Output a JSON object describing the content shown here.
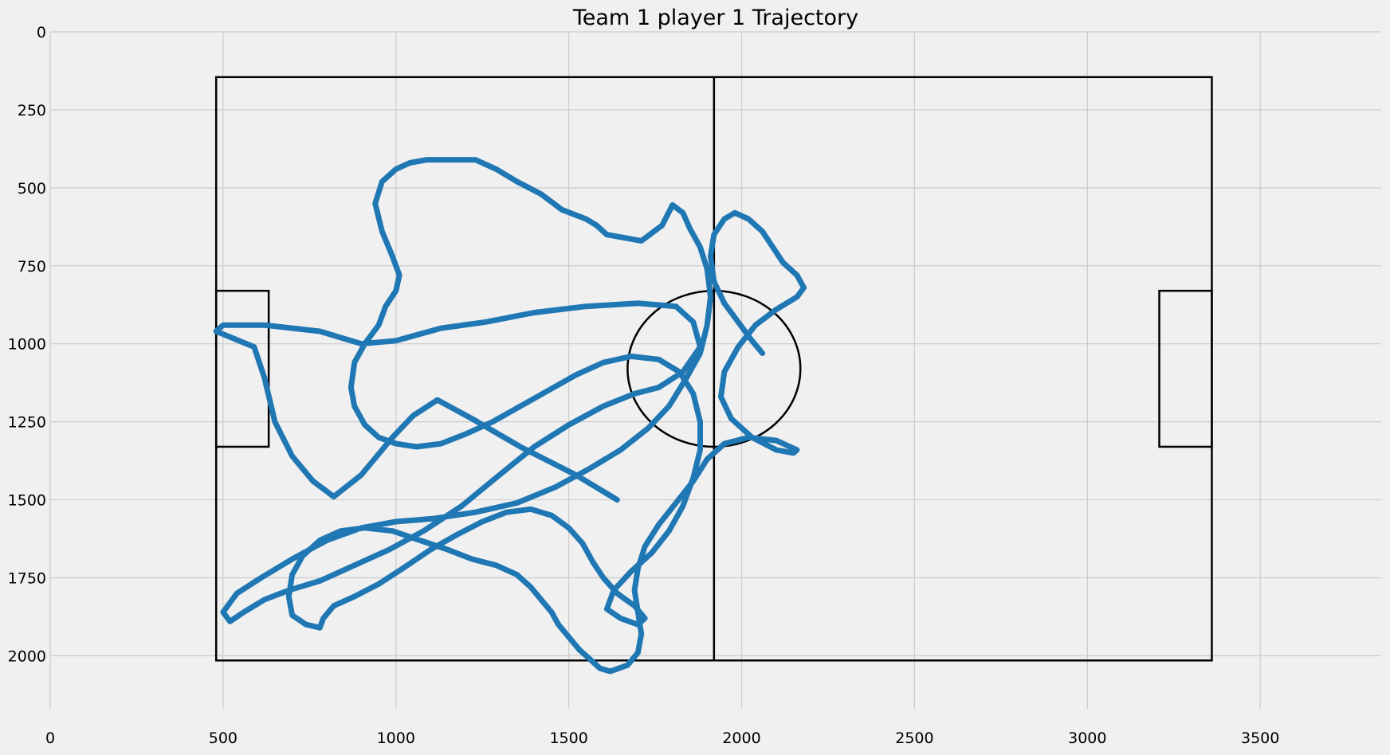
{
  "chart_data": {
    "type": "line",
    "title": "Team 1 player 1 Trajectory",
    "xlabel": "",
    "ylabel": "",
    "xlim": [
      0,
      3850
    ],
    "ylim": [
      2170,
      0
    ],
    "y_axis_inverted": true,
    "grid": true,
    "xticks": [
      "0",
      "500",
      "1000",
      "1500",
      "2000",
      "2500",
      "3000",
      "3500"
    ],
    "yticks": [
      "0",
      "250",
      "500",
      "750",
      "1000",
      "1250",
      "1500",
      "1750",
      "2000"
    ],
    "xtick_values": [
      0,
      500,
      1000,
      1500,
      2000,
      2500,
      3000,
      3500
    ],
    "ytick_values": [
      0,
      250,
      500,
      750,
      1000,
      1250,
      1500,
      1750,
      2000
    ],
    "colors": {
      "trajectory": "#1f77b4",
      "pitch_lines": "#000000",
      "background": "#f0f0f0",
      "grid": "#cbcbcb"
    },
    "pitch": {
      "boundary": {
        "x": [
          480,
          3360
        ],
        "y": [
          145,
          2015
        ]
      },
      "halfway_x": 1920,
      "left_box": {
        "x": [
          480,
          632
        ],
        "y": [
          830,
          1330
        ]
      },
      "right_box": {
        "x": [
          3208,
          3360
        ],
        "y": [
          830,
          1330
        ]
      },
      "center_circle": {
        "cx": 1920,
        "cy": 1080,
        "r": 250
      }
    },
    "series": [
      {
        "values": [
          [
            1640,
            1500
          ],
          [
            1520,
            1420
          ],
          [
            1360,
            1330
          ],
          [
            1220,
            1240
          ],
          [
            1120,
            1180
          ],
          [
            1050,
            1230
          ],
          [
            990,
            1300
          ],
          [
            900,
            1420
          ],
          [
            820,
            1490
          ],
          [
            760,
            1440
          ],
          [
            700,
            1360
          ],
          [
            650,
            1250
          ],
          [
            620,
            1110
          ],
          [
            590,
            1010
          ],
          [
            480,
            960
          ],
          [
            500,
            940
          ],
          [
            620,
            940
          ],
          [
            780,
            960
          ],
          [
            900,
            1000
          ],
          [
            1000,
            990
          ],
          [
            1130,
            950
          ],
          [
            1260,
            930
          ],
          [
            1400,
            900
          ],
          [
            1550,
            880
          ],
          [
            1700,
            870
          ],
          [
            1810,
            880
          ],
          [
            1860,
            930
          ],
          [
            1880,
            1010
          ],
          [
            1830,
            1090
          ],
          [
            1760,
            1140
          ],
          [
            1690,
            1160
          ],
          [
            1600,
            1200
          ],
          [
            1500,
            1260
          ],
          [
            1400,
            1330
          ],
          [
            1300,
            1420
          ],
          [
            1190,
            1520
          ],
          [
            1080,
            1600
          ],
          [
            980,
            1660
          ],
          [
            880,
            1710
          ],
          [
            780,
            1760
          ],
          [
            690,
            1790
          ],
          [
            620,
            1820
          ],
          [
            560,
            1860
          ],
          [
            520,
            1890
          ],
          [
            500,
            1860
          ],
          [
            540,
            1800
          ],
          [
            610,
            1750
          ],
          [
            700,
            1690
          ],
          [
            800,
            1630
          ],
          [
            900,
            1590
          ],
          [
            1000,
            1570
          ],
          [
            1110,
            1560
          ],
          [
            1230,
            1540
          ],
          [
            1350,
            1510
          ],
          [
            1460,
            1460
          ],
          [
            1560,
            1400
          ],
          [
            1650,
            1340
          ],
          [
            1730,
            1270
          ],
          [
            1790,
            1200
          ],
          [
            1840,
            1110
          ],
          [
            1880,
            1030
          ],
          [
            1900,
            940
          ],
          [
            1910,
            850
          ],
          [
            1900,
            760
          ],
          [
            1880,
            690
          ],
          [
            1850,
            630
          ],
          [
            1830,
            580
          ],
          [
            1800,
            555
          ],
          [
            1770,
            620
          ],
          [
            1710,
            670
          ],
          [
            1610,
            650
          ],
          [
            1580,
            620
          ],
          [
            1550,
            600
          ],
          [
            1480,
            570
          ],
          [
            1420,
            520
          ],
          [
            1350,
            480
          ],
          [
            1290,
            440
          ],
          [
            1230,
            410
          ],
          [
            1160,
            410
          ],
          [
            1090,
            410
          ],
          [
            1040,
            420
          ],
          [
            1000,
            440
          ],
          [
            960,
            480
          ],
          [
            940,
            550
          ],
          [
            960,
            640
          ],
          [
            990,
            720
          ],
          [
            1010,
            780
          ],
          [
            1000,
            830
          ],
          [
            970,
            880
          ],
          [
            950,
            940
          ],
          [
            910,
            1000
          ],
          [
            880,
            1060
          ],
          [
            870,
            1140
          ],
          [
            880,
            1200
          ],
          [
            910,
            1260
          ],
          [
            950,
            1300
          ],
          [
            1000,
            1320
          ],
          [
            1060,
            1330
          ],
          [
            1130,
            1320
          ],
          [
            1200,
            1290
          ],
          [
            1280,
            1250
          ],
          [
            1360,
            1200
          ],
          [
            1440,
            1150
          ],
          [
            1520,
            1100
          ],
          [
            1600,
            1060
          ],
          [
            1680,
            1040
          ],
          [
            1760,
            1050
          ],
          [
            1820,
            1090
          ],
          [
            1860,
            1160
          ],
          [
            1880,
            1250
          ],
          [
            1880,
            1340
          ],
          [
            1860,
            1430
          ],
          [
            1830,
            1520
          ],
          [
            1790,
            1600
          ],
          [
            1740,
            1670
          ],
          [
            1680,
            1730
          ],
          [
            1630,
            1790
          ],
          [
            1610,
            1850
          ],
          [
            1650,
            1880
          ],
          [
            1700,
            1900
          ],
          [
            1720,
            1880
          ],
          [
            1690,
            1840
          ],
          [
            1640,
            1800
          ],
          [
            1600,
            1750
          ],
          [
            1570,
            1700
          ],
          [
            1540,
            1640
          ],
          [
            1500,
            1590
          ],
          [
            1450,
            1550
          ],
          [
            1390,
            1530
          ],
          [
            1320,
            1540
          ],
          [
            1250,
            1570
          ],
          [
            1180,
            1610
          ],
          [
            1100,
            1660
          ],
          [
            1020,
            1720
          ],
          [
            950,
            1770
          ],
          [
            880,
            1810
          ],
          [
            820,
            1840
          ],
          [
            790,
            1880
          ],
          [
            780,
            1910
          ],
          [
            740,
            1900
          ],
          [
            700,
            1870
          ],
          [
            690,
            1810
          ],
          [
            700,
            1740
          ],
          [
            730,
            1680
          ],
          [
            780,
            1630
          ],
          [
            840,
            1600
          ],
          [
            910,
            1590
          ],
          [
            990,
            1600
          ],
          [
            1070,
            1630
          ],
          [
            1150,
            1660
          ],
          [
            1220,
            1690
          ],
          [
            1290,
            1710
          ],
          [
            1350,
            1740
          ],
          [
            1390,
            1780
          ],
          [
            1420,
            1820
          ],
          [
            1450,
            1860
          ],
          [
            1470,
            1900
          ],
          [
            1500,
            1940
          ],
          [
            1530,
            1980
          ],
          [
            1560,
            2010
          ],
          [
            1590,
            2040
          ],
          [
            1620,
            2050
          ],
          [
            1670,
            2030
          ],
          [
            1700,
            1990
          ],
          [
            1710,
            1930
          ],
          [
            1700,
            1860
          ],
          [
            1690,
            1790
          ],
          [
            1700,
            1720
          ],
          [
            1720,
            1650
          ],
          [
            1760,
            1580
          ],
          [
            1810,
            1510
          ],
          [
            1860,
            1440
          ],
          [
            1900,
            1370
          ],
          [
            1950,
            1320
          ],
          [
            2020,
            1300
          ],
          [
            2100,
            1310
          ],
          [
            2160,
            1340
          ],
          [
            2150,
            1350
          ],
          [
            2100,
            1340
          ],
          [
            2030,
            1300
          ],
          [
            1970,
            1240
          ],
          [
            1940,
            1170
          ],
          [
            1950,
            1090
          ],
          [
            1990,
            1010
          ],
          [
            2040,
            940
          ],
          [
            2100,
            890
          ],
          [
            2160,
            850
          ],
          [
            2180,
            820
          ],
          [
            2160,
            780
          ],
          [
            2120,
            740
          ],
          [
            2090,
            690
          ],
          [
            2060,
            640
          ],
          [
            2020,
            600
          ],
          [
            1980,
            580
          ],
          [
            1950,
            600
          ],
          [
            1920,
            650
          ],
          [
            1910,
            720
          ],
          [
            1920,
            800
          ],
          [
            1950,
            870
          ],
          [
            1990,
            930
          ],
          [
            2030,
            990
          ],
          [
            2060,
            1030
          ]
        ]
      }
    ]
  }
}
